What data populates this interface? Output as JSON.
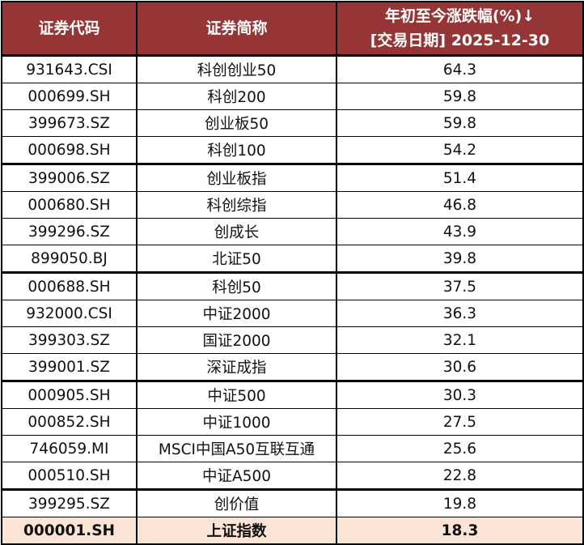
{
  "table": {
    "headers": {
      "code": "证券代码",
      "name": "证券简称",
      "change_line1": "年初至今涨跌幅(%)↓",
      "change_line2": "[交易日期] 2025-12-30"
    },
    "rows": [
      {
        "code": "931643.CSI",
        "name": "科创创业50",
        "change": "64.3"
      },
      {
        "code": "000699.SH",
        "name": "科创200",
        "change": "59.8"
      },
      {
        "code": "399673.SZ",
        "name": "创业板50",
        "change": "59.8"
      },
      {
        "code": "000698.SH",
        "name": "科创100",
        "change": "54.2"
      },
      {
        "code": "399006.SZ",
        "name": "创业板指",
        "change": "51.4"
      },
      {
        "code": "000680.SH",
        "name": "科创综指",
        "change": "46.8"
      },
      {
        "code": "399296.SZ",
        "name": "创成长",
        "change": "43.9"
      },
      {
        "code": "899050.BJ",
        "name": "北证50",
        "change": "39.8"
      },
      {
        "code": "000688.SH",
        "name": "科创50",
        "change": "37.5"
      },
      {
        "code": "932000.CSI",
        "name": "中证2000",
        "change": "36.3"
      },
      {
        "code": "399303.SZ",
        "name": "国证2000",
        "change": "32.1"
      },
      {
        "code": "399001.SZ",
        "name": "深证成指",
        "change": "30.6"
      },
      {
        "code": "000905.SH",
        "name": "中证500",
        "change": "30.3"
      },
      {
        "code": "000852.SH",
        "name": "中证1000",
        "change": "27.5"
      },
      {
        "code": "746059.MI",
        "name": "MSCI中国A50互联互通",
        "change": "25.6"
      },
      {
        "code": "000510.SH",
        "name": "中证A500",
        "change": "22.8"
      },
      {
        "code": "399295.SZ",
        "name": "创价值",
        "change": "19.8"
      },
      {
        "code": "000001.SH",
        "name": "上证指数",
        "change": "18.3"
      }
    ]
  },
  "colors": {
    "header_bg": "#963535",
    "header_text": "#ffffff",
    "highlight_row_bg": "#fbe4d6"
  }
}
